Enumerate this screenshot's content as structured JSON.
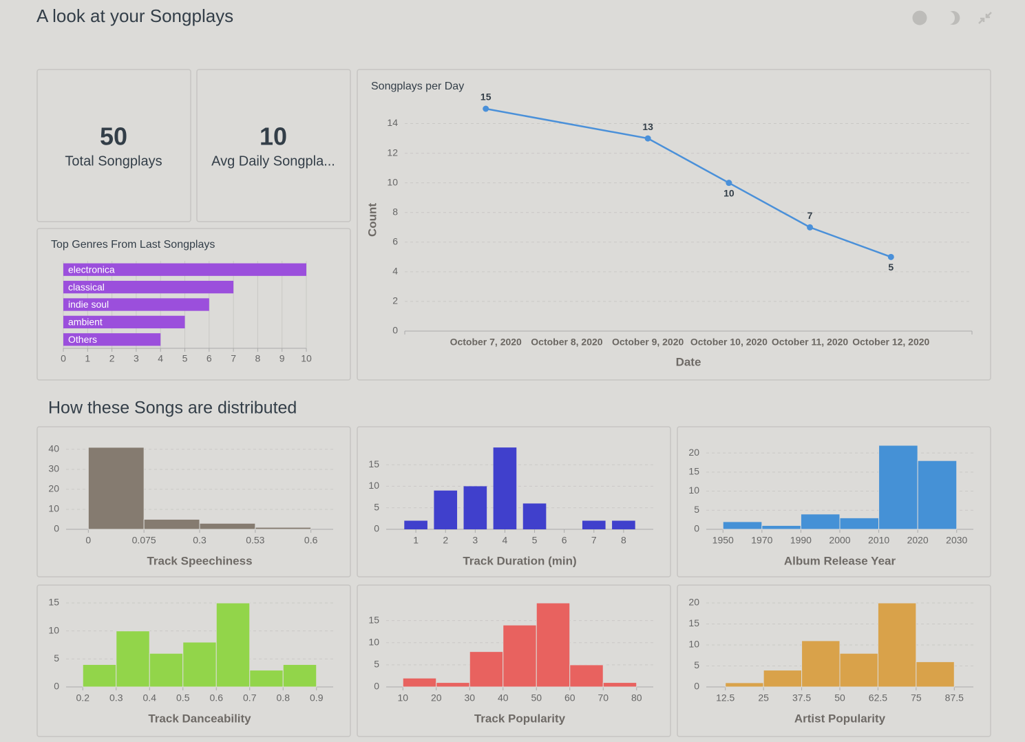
{
  "title": "A look at your Songplays",
  "kpis": [
    {
      "value": 50,
      "label": "Total Songplays"
    },
    {
      "value": 10,
      "label": "Avg Daily Songpla..."
    }
  ],
  "section_title": "How these Songs are distributed",
  "chart_data": [
    {
      "type": "bar",
      "orientation": "horizontal",
      "title": "Top Genres From Last Songplays",
      "categories": [
        "electronica",
        "classical",
        "indie soul",
        "ambient",
        "Others"
      ],
      "values": [
        10,
        7,
        6,
        5,
        4
      ],
      "color": "#9b4fdc",
      "xlim": [
        0,
        10
      ],
      "xticks": [
        0,
        1,
        2,
        3,
        4,
        5,
        6,
        7,
        8,
        9,
        10
      ],
      "grid": true
    },
    {
      "type": "line",
      "title": "Songplays per Day",
      "x": [
        "October 7, 2020",
        "October 9, 2020",
        "October 10, 2020",
        "October 11, 2020",
        "October 12, 2020"
      ],
      "values": [
        15,
        13,
        10,
        7,
        5
      ],
      "color": "#4a90d9",
      "xlim": [
        "October 6, 2020",
        "October 13, 2020"
      ],
      "xticks": [
        "October 7, 2020",
        "October 8, 2020",
        "October 9, 2020",
        "October 10, 2020",
        "October 11, 2020",
        "October 12, 2020"
      ],
      "ylim": [
        0,
        15
      ],
      "yticks": [
        0,
        2,
        4,
        6,
        8,
        10,
        12,
        14
      ],
      "xlabel": "Date",
      "ylabel": "Count",
      "grid": true
    },
    {
      "type": "histogram",
      "x_scale": "category",
      "bins": [
        0,
        0.075,
        0.3,
        0.53,
        0.6
      ],
      "values": [
        41,
        5,
        3,
        1
      ],
      "xlabel": "Track Speechiness",
      "color": "#857b70",
      "ylim": [
        0,
        42
      ],
      "yticks": [
        0,
        10,
        20,
        30,
        40
      ],
      "grid": true
    },
    {
      "type": "bar",
      "categories": [
        1,
        2,
        3,
        4,
        5,
        6,
        7,
        8
      ],
      "values": [
        2,
        9,
        10,
        19,
        6,
        0,
        2,
        2
      ],
      "xlabel": "Track Duration (min)",
      "color": "#4040cc",
      "ylim": [
        0,
        19.5
      ],
      "yticks": [
        0,
        5,
        10,
        15
      ],
      "grid": true
    },
    {
      "type": "histogram",
      "x_scale": "category",
      "bins": [
        1950,
        1970,
        1990,
        2000,
        2010,
        2020,
        2030
      ],
      "values": [
        2,
        1,
        4,
        3,
        22,
        18
      ],
      "xlabel": "Album Release Year",
      "color": "#4591d6",
      "ylim": [
        0,
        22
      ],
      "yticks": [
        0,
        5,
        10,
        15,
        20
      ],
      "grid": true
    },
    {
      "type": "histogram",
      "bins": [
        0.2,
        0.3,
        0.4,
        0.5,
        0.6,
        0.7,
        0.8,
        0.9
      ],
      "values": [
        4,
        10,
        6,
        8,
        15,
        3,
        4
      ],
      "xlim": [
        0.15,
        0.95
      ],
      "xticks": [
        0.2,
        0.3,
        0.4,
        0.5,
        0.6,
        0.7,
        0.8,
        0.9
      ],
      "xlabel": "Track Danceability",
      "color": "#92d54a",
      "ylim": [
        0,
        15
      ],
      "yticks": [
        0,
        5,
        10,
        15
      ],
      "grid": true
    },
    {
      "type": "histogram",
      "bins": [
        10,
        20,
        30,
        40,
        50,
        60,
        70,
        80
      ],
      "values": [
        2,
        1,
        8,
        14,
        19,
        5,
        1
      ],
      "xlim": [
        5,
        85
      ],
      "xticks": [
        10,
        20,
        30,
        40,
        50,
        60,
        70,
        80
      ],
      "xlabel": "Track Popularity",
      "color": "#e8625f",
      "ylim": [
        0,
        19
      ],
      "yticks": [
        0,
        5,
        10,
        15
      ],
      "grid": true
    },
    {
      "type": "histogram",
      "bins": [
        12.5,
        25,
        37.5,
        50,
        62.5,
        75,
        87.5
      ],
      "values": [
        1,
        4,
        11,
        8,
        20,
        6
      ],
      "xlim": [
        6.25,
        93.75
      ],
      "xticks": [
        12.5,
        25,
        37.5,
        50,
        62.5,
        75,
        87.5
      ],
      "xlabel": "Artist Popularity",
      "color": "#d9a24a",
      "ylim": [
        0,
        20
      ],
      "yticks": [
        0,
        5,
        10,
        15,
        20
      ],
      "grid": true
    }
  ]
}
